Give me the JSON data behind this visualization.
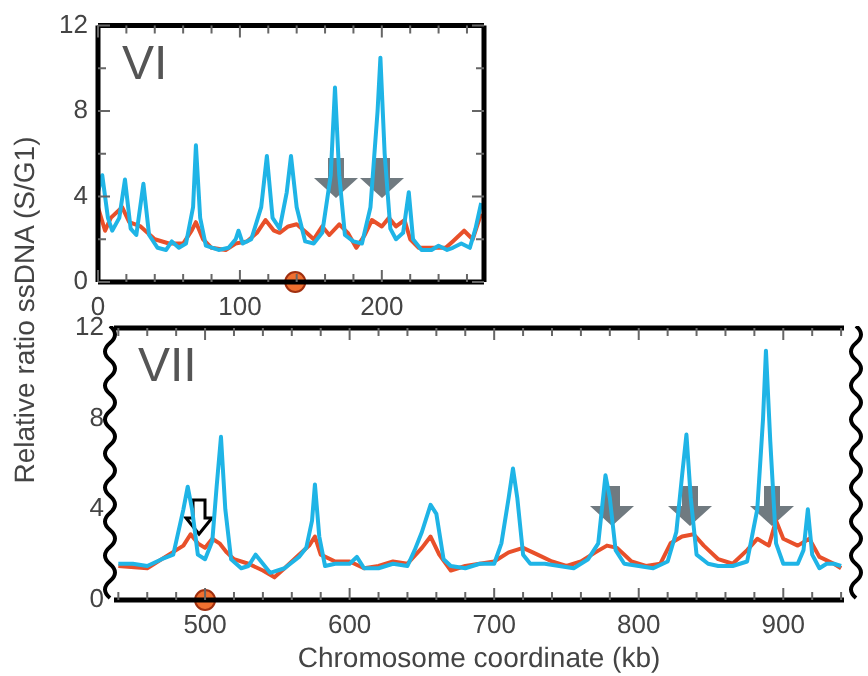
{
  "chart_data": [
    {
      "type": "line",
      "annotations": [
        "VI"
      ],
      "xlim": [
        0,
        272
      ],
      "ylim": [
        0,
        12
      ],
      "xticks": [
        0,
        {
          "value": 20,
          "label": null
        },
        {
          "value": 40,
          "label": null
        },
        {
          "value": 60,
          "label": null
        },
        {
          "value": 80,
          "label": null
        },
        100,
        {
          "value": 120,
          "label": null
        },
        {
          "value": 140,
          "label": null
        },
        {
          "value": 160,
          "label": null
        },
        {
          "value": 180,
          "label": null
        },
        200,
        {
          "value": 220,
          "label": null
        },
        {
          "value": 240,
          "label": null
        },
        {
          "value": 260,
          "label": null
        }
      ],
      "yticks": [
        0,
        {
          "value": 2,
          "label": null
        },
        4,
        {
          "value": 6,
          "label": null
        },
        8,
        {
          "value": 10,
          "label": null
        },
        12
      ],
      "grid": false,
      "legend": false,
      "marker": "none",
      "line_style": "solid",
      "series": [
        {
          "color": "#1fb4e6",
          "x": [
            0,
            3,
            7,
            10,
            15,
            19,
            23,
            27,
            32,
            36,
            42,
            48,
            52,
            57,
            62,
            67,
            69,
            72,
            76,
            85,
            92,
            97,
            99,
            102,
            108,
            115,
            119,
            123,
            128,
            133,
            136,
            140,
            146,
            152,
            158,
            164,
            167,
            170,
            174,
            180,
            186,
            192,
            197,
            199,
            202,
            206,
            210,
            215,
            219,
            222,
            228,
            235,
            240,
            246,
            250,
            256,
            262,
            266,
            270
          ],
          "values": [
            4.2,
            5.0,
            3.0,
            2.4,
            3.0,
            4.8,
            2.5,
            2.2,
            4.6,
            2.2,
            1.6,
            1.5,
            1.9,
            1.6,
            1.8,
            3.5,
            6.4,
            3.0,
            1.7,
            1.5,
            1.6,
            2.0,
            2.4,
            1.8,
            2.0,
            3.5,
            5.9,
            3.0,
            2.5,
            4.2,
            5.9,
            3.5,
            1.9,
            1.8,
            2.3,
            5.0,
            9.1,
            5.0,
            2.2,
            1.9,
            1.8,
            3.5,
            8.0,
            10.5,
            6.0,
            2.5,
            2.0,
            2.3,
            4.2,
            2.0,
            1.5,
            1.5,
            1.7,
            1.5,
            1.6,
            1.8,
            1.6,
            2.5,
            3.7
          ]
        },
        {
          "color": "#e8502a",
          "x": [
            0,
            5,
            9,
            17,
            22,
            30,
            40,
            50,
            60,
            66,
            69,
            74,
            80,
            90,
            97,
            105,
            112,
            118,
            124,
            128,
            134,
            140,
            147,
            152,
            158,
            163,
            170,
            176,
            182,
            188,
            193,
            200,
            205,
            210,
            216,
            220,
            226,
            235,
            245,
            250,
            258,
            264,
            270
          ],
          "values": [
            3.5,
            2.4,
            3.0,
            3.5,
            2.8,
            2.6,
            2.0,
            1.8,
            1.8,
            2.4,
            2.8,
            2.0,
            1.6,
            1.5,
            1.8,
            1.9,
            2.3,
            2.9,
            2.4,
            2.3,
            2.6,
            2.7,
            2.3,
            2.0,
            2.6,
            2.2,
            2.7,
            2.3,
            1.6,
            2.2,
            2.9,
            2.6,
            3.0,
            2.6,
            2.9,
            2.0,
            1.6,
            1.6,
            1.6,
            1.9,
            2.4,
            2.0,
            3.2
          ]
        },
        {
          "type": "scatter",
          "color": "#f07030",
          "marker": "circle",
          "x": [
            139
          ],
          "values": [
            0
          ]
        }
      ]
    },
    {
      "type": "line",
      "annotations": [
        "VII"
      ],
      "xlabel": "Chromosome coordinate (kb)",
      "ylabel": "Relative ratio ssDNA (S/G1)",
      "xlim": [
        437,
        942
      ],
      "ylim": [
        0,
        12
      ],
      "xticks": [
        {
          "value": 440,
          "label": null
        },
        {
          "value": 460,
          "label": null
        },
        {
          "value": 480,
          "label": null
        },
        500,
        {
          "value": 520,
          "label": null
        },
        {
          "value": 540,
          "label": null
        },
        {
          "value": 560,
          "label": null
        },
        {
          "value": 580,
          "label": null
        },
        600,
        {
          "value": 620,
          "label": null
        },
        {
          "value": 640,
          "label": null
        },
        {
          "value": 660,
          "label": null
        },
        {
          "value": 680,
          "label": null
        },
        700,
        {
          "value": 720,
          "label": null
        },
        {
          "value": 740,
          "label": null
        },
        {
          "value": 760,
          "label": null
        },
        {
          "value": 780,
          "label": null
        },
        800,
        {
          "value": 820,
          "label": null
        },
        {
          "value": 840,
          "label": null
        },
        {
          "value": 860,
          "label": null
        },
        {
          "value": 880,
          "label": null
        },
        900,
        {
          "value": 920,
          "label": null
        },
        {
          "value": 940,
          "label": null
        }
      ],
      "yticks": [
        0,
        4,
        8,
        12
      ],
      "grid": false,
      "legend": false,
      "marker": "none",
      "line_style": "solid",
      "series": [
        {
          "color": "#1fb4e6",
          "x": [
            440,
            450,
            460,
            470,
            478,
            485,
            488,
            491,
            495,
            500,
            505,
            508,
            511,
            514,
            518,
            525,
            530,
            535,
            540,
            545,
            555,
            565,
            570,
            574,
            576,
            579,
            583,
            590,
            600,
            605,
            610,
            620,
            630,
            640,
            645,
            650,
            656,
            660,
            665,
            670,
            680,
            690,
            700,
            705,
            710,
            713,
            716,
            720,
            725,
            735,
            745,
            755,
            765,
            772,
            777,
            780,
            784,
            790,
            800,
            810,
            820,
            826,
            830,
            833,
            836,
            840,
            848,
            855,
            865,
            875,
            882,
            886,
            888,
            891,
            895,
            900,
            910,
            914,
            917,
            920,
            925,
            930,
            935,
            940
          ],
          "values": [
            1.6,
            1.6,
            1.5,
            1.8,
            2.0,
            4.0,
            5.0,
            4.0,
            2.0,
            1.8,
            2.6,
            5.0,
            7.2,
            4.0,
            1.8,
            1.4,
            1.5,
            2.0,
            1.6,
            1.2,
            1.4,
            1.9,
            2.3,
            3.5,
            5.1,
            2.8,
            1.5,
            1.6,
            1.6,
            1.9,
            1.4,
            1.4,
            1.6,
            1.5,
            2.2,
            3.0,
            4.2,
            3.8,
            1.8,
            1.5,
            1.4,
            1.6,
            1.6,
            2.5,
            4.5,
            5.8,
            4.5,
            2.0,
            1.6,
            1.6,
            1.5,
            1.4,
            1.8,
            2.5,
            5.5,
            4.5,
            2.2,
            1.6,
            1.5,
            1.4,
            1.7,
            3.0,
            5.5,
            7.3,
            4.5,
            2.0,
            1.6,
            1.5,
            1.5,
            1.7,
            4.0,
            8.0,
            11.0,
            7.0,
            2.5,
            1.6,
            1.6,
            2.2,
            4.0,
            2.0,
            1.4,
            1.6,
            1.6,
            1.5
          ]
        },
        {
          "color": "#e8502a",
          "x": [
            440,
            460,
            475,
            485,
            490,
            495,
            500,
            505,
            510,
            515,
            520,
            530,
            540,
            548,
            555,
            565,
            572,
            576,
            580,
            590,
            600,
            610,
            620,
            630,
            640,
            650,
            656,
            662,
            670,
            680,
            690,
            700,
            710,
            720,
            730,
            740,
            750,
            760,
            770,
            778,
            785,
            795,
            805,
            815,
            822,
            830,
            838,
            845,
            855,
            865,
            875,
            882,
            890,
            895,
            900,
            910,
            918,
            925,
            935,
            940
          ],
          "values": [
            1.5,
            1.4,
            2.0,
            2.4,
            2.9,
            2.5,
            2.3,
            2.7,
            2.5,
            2.1,
            1.8,
            1.6,
            1.3,
            1.0,
            1.4,
            2.0,
            2.4,
            2.8,
            2.0,
            1.7,
            1.7,
            1.4,
            1.5,
            1.7,
            1.6,
            2.3,
            2.8,
            2.0,
            1.3,
            1.5,
            1.6,
            1.7,
            2.1,
            2.3,
            2.0,
            1.7,
            1.5,
            1.7,
            2.1,
            2.4,
            2.3,
            1.7,
            1.5,
            1.6,
            2.5,
            2.8,
            2.9,
            2.4,
            1.8,
            1.6,
            2.2,
            2.7,
            2.4,
            3.5,
            2.7,
            2.4,
            2.7,
            1.9,
            1.6,
            1.4
          ]
        },
        {
          "type": "scatter",
          "color": "#f07030",
          "marker": "circle",
          "x": [
            500
          ],
          "values": [
            0
          ]
        }
      ]
    }
  ]
}
